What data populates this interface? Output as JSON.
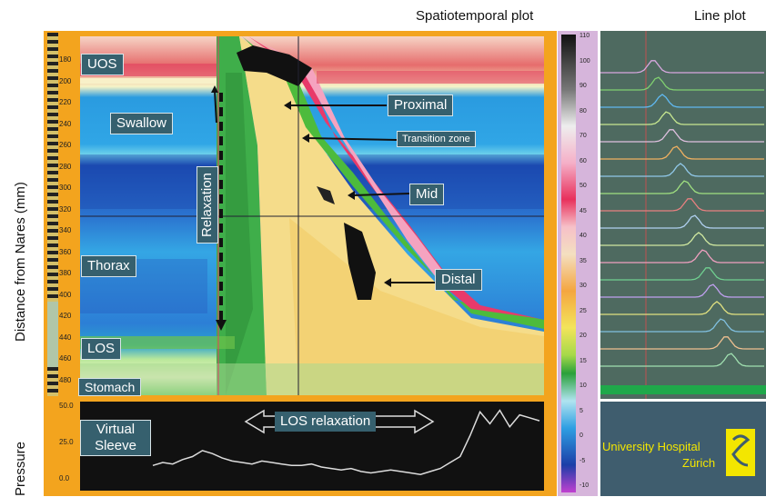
{
  "headers": {
    "spatiotemporal": "Spatiotemporal plot",
    "line": "Line plot"
  },
  "axes": {
    "y_title": "Distance from Nares (mm)",
    "pressure_title": "Pressure"
  },
  "depth_ticks": [
    "180",
    "200",
    "220",
    "240",
    "260",
    "280",
    "300",
    "320",
    "340",
    "360",
    "380",
    "400",
    "420",
    "440",
    "460",
    "480"
  ],
  "pressure_ticks": [
    "50.0",
    "25.0",
    "0.0"
  ],
  "colorbar_ticks": [
    "110",
    "100",
    "90",
    "80",
    "70",
    "60",
    "50",
    "45",
    "40",
    "35",
    "30",
    "25",
    "20",
    "15",
    "10",
    "5",
    "0",
    "-5",
    "-10"
  ],
  "annotations": {
    "uos": "UOS",
    "swallow": "Swallow",
    "relaxation": "Relaxation",
    "thorax": "Thorax",
    "los": "LOS",
    "stomach": "Stomach",
    "proximal": "Proximal",
    "transition": "Transition zone",
    "mid": "Mid",
    "distal": "Distal",
    "virtual_sleeve": "Virtual Sleeve",
    "los_relaxation": "LOS relaxation"
  },
  "logo": {
    "line1": "University Hospital",
    "line2": "Zürich"
  },
  "colors": {
    "frame": "#f3a41e",
    "label_bg": "#36606e",
    "logo_text": "#f3e600"
  },
  "pressure_trace": [
    12,
    14,
    13,
    16,
    18,
    22,
    20,
    17,
    15,
    14,
    13,
    15,
    14,
    13,
    12,
    12,
    13,
    11,
    10,
    9,
    10,
    8,
    7,
    8,
    9,
    8,
    7,
    6,
    8,
    10,
    14,
    18,
    32,
    48,
    40,
    49,
    38,
    46,
    44,
    42
  ]
}
